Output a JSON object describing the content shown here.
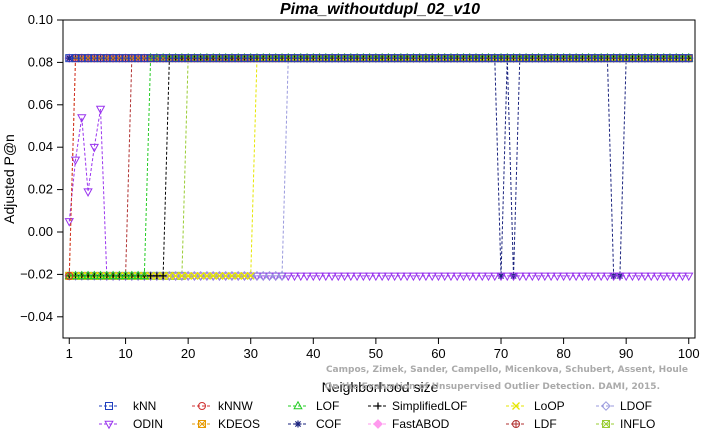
{
  "chart_data": {
    "type": "line",
    "title": "Pima_withoutdupl_02_v10",
    "xlabel": "Neighborhood size",
    "ylabel": "Adjusted P@n",
    "xlim": [
      0,
      101
    ],
    "ylim": [
      -0.05,
      0.1
    ],
    "x_ticks": [
      1,
      10,
      20,
      30,
      40,
      50,
      60,
      70,
      80,
      90,
      100
    ],
    "x_tick_labels": [
      "1",
      "10",
      "20",
      "30",
      "40",
      "50",
      "60",
      "70",
      "80",
      "90",
      "100"
    ],
    "y_ticks": [
      -0.04,
      -0.02,
      0.0,
      0.02,
      0.04,
      0.06,
      0.08,
      0.1
    ],
    "y_tick_labels": [
      "−0.04",
      "−0.02",
      "0.00",
      "0.02",
      "0.04",
      "0.06",
      "0.08",
      "0.10"
    ],
    "grid": false,
    "legend_position": "bottom",
    "watermark_lines": [
      "Campos, Zimek, Sander, Campello, Micenkova, Schubert, Assent, Houle",
      "On the Evaluation of Unsupervised Outlier Detection. DAMI, 2015."
    ],
    "series": [
      {
        "name": "kNN",
        "color": "#1f3fbf",
        "marker": "square",
        "high": 0.082,
        "low": -0.0207,
        "segments": [
          [
            1,
            100,
            "high"
          ]
        ]
      },
      {
        "name": "kNNW",
        "color": "#d03030",
        "marker": "circle",
        "high": 0.082,
        "low": -0.0207,
        "segments": [
          [
            1,
            1,
            "low"
          ],
          [
            2,
            100,
            "high"
          ]
        ]
      },
      {
        "name": "LOF",
        "color": "#22cc22",
        "marker": "triangle",
        "high": 0.082,
        "low": -0.0207,
        "segments": [
          [
            1,
            13,
            "low"
          ],
          [
            14,
            100,
            "high"
          ]
        ]
      },
      {
        "name": "SimplifiedLOF",
        "color": "#000000",
        "marker": "plus",
        "high": 0.082,
        "low": -0.0207,
        "segments": [
          [
            1,
            16,
            "low"
          ],
          [
            17,
            100,
            "high"
          ]
        ]
      },
      {
        "name": "LoOP",
        "color": "#e6e600",
        "marker": "cross",
        "high": 0.082,
        "low": -0.0207,
        "segments": [
          [
            1,
            30,
            "low"
          ],
          [
            31,
            100,
            "high"
          ]
        ]
      },
      {
        "name": "LDOF",
        "color": "#9999dd",
        "marker": "diamond",
        "high": 0.082,
        "low": -0.0207,
        "segments": [
          [
            1,
            35,
            "low"
          ],
          [
            36,
            100,
            "high"
          ]
        ]
      },
      {
        "name": "ODIN",
        "color": "#9933ee",
        "marker": "triangle-down",
        "high": 0.082,
        "low": -0.0207,
        "points": [
          [
            1,
            0.005
          ],
          [
            2,
            0.034
          ],
          [
            3,
            0.054
          ],
          [
            4,
            0.019
          ],
          [
            5,
            0.04
          ],
          [
            6,
            0.058
          ],
          [
            7,
            -0.0207
          ]
        ],
        "segments": [
          [
            8,
            100,
            "low"
          ]
        ]
      },
      {
        "name": "KDEOS",
        "color": "#e69900",
        "marker": "square-x",
        "high": 0.082,
        "low": -0.0207,
        "segments": [
          [
            1,
            1,
            "low"
          ],
          [
            2,
            100,
            "high"
          ]
        ]
      },
      {
        "name": "COF",
        "color": "#1a237e",
        "marker": "asterisk",
        "high": 0.082,
        "low": -0.0207,
        "segments": [
          [
            1,
            69,
            "high"
          ],
          [
            70,
            70,
            "low"
          ],
          [
            71,
            71,
            "high"
          ],
          [
            72,
            72,
            "low"
          ],
          [
            73,
            87,
            "high"
          ],
          [
            88,
            89,
            "low"
          ],
          [
            90,
            100,
            "high"
          ]
        ]
      },
      {
        "name": "FastABOD",
        "color": "#ff99ee",
        "marker": "diamond-filled",
        "high": 0.082,
        "low": -0.0207,
        "segments": [
          [
            1,
            100,
            "high"
          ]
        ]
      },
      {
        "name": "LDF",
        "color": "#b03030",
        "marker": "circle-plus",
        "high": 0.082,
        "low": -0.0207,
        "segments": [
          [
            1,
            10,
            "low"
          ],
          [
            11,
            100,
            "high"
          ]
        ]
      },
      {
        "name": "INFLO",
        "color": "#99cc33",
        "marker": "square-x",
        "high": 0.082,
        "low": -0.0207,
        "segments": [
          [
            1,
            19,
            "low"
          ],
          [
            20,
            100,
            "high"
          ]
        ]
      }
    ]
  }
}
